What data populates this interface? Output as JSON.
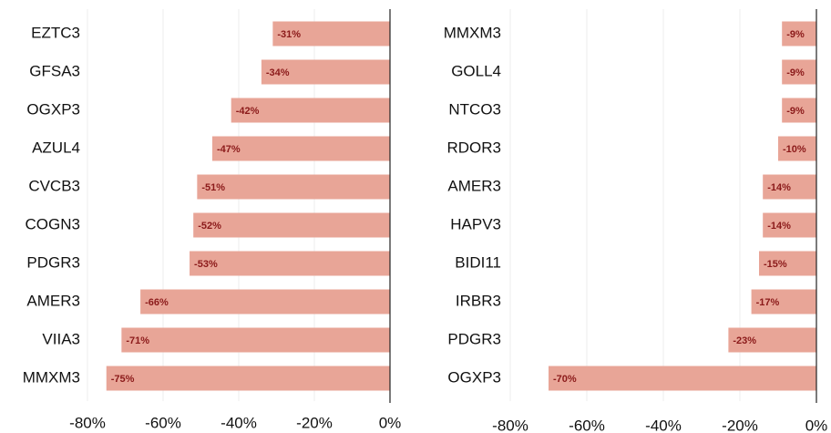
{
  "chart_data": [
    {
      "type": "bar",
      "orientation": "horizontal",
      "color": "#e8a597",
      "categories": [
        "EZTC3",
        "GFSA3",
        "OGXP3",
        "AZUL4",
        "CVCB3",
        "COGN3",
        "PDGR3",
        "AMER3",
        "VIIA3",
        "MMXM3"
      ],
      "values": [
        -31,
        -34,
        -42,
        -47,
        -51,
        -52,
        -53,
        -66,
        -71,
        -75
      ],
      "value_labels": [
        "-31%",
        "-34%",
        "-42%",
        "-47%",
        "-51%",
        "-52%",
        "-53%",
        "-66%",
        "-71%",
        "-75%"
      ],
      "xlim": [
        -80,
        0
      ],
      "xticks": [
        {
          "value": -80,
          "label": "-80%"
        },
        {
          "value": -60,
          "label": "-60%"
        },
        {
          "value": -40,
          "label": "-40%"
        },
        {
          "value": -20,
          "label": "-20%"
        },
        {
          "value": 0,
          "label": "0%"
        }
      ],
      "grid": true
    },
    {
      "type": "bar",
      "orientation": "horizontal",
      "color": "#e8a597",
      "categories": [
        "MMXM3",
        "GOLL4",
        "NTCO3",
        "RDOR3",
        "AMER3",
        "HAPV3",
        "BIDI11",
        "IRBR3",
        "PDGR3",
        "OGXP3"
      ],
      "values": [
        -9,
        -9,
        -9,
        -10,
        -14,
        -14,
        -15,
        -17,
        -23,
        -70
      ],
      "value_labels": [
        "-9%",
        "-9%",
        "-9%",
        "-10%",
        "-14%",
        "-14%",
        "-15%",
        "-17%",
        "-23%",
        "-70%"
      ],
      "xlim": [
        -80,
        0
      ],
      "xticks": [
        {
          "value": -80,
          "label": "-80%"
        },
        {
          "value": -60,
          "label": "-60%"
        },
        {
          "value": -40,
          "label": "-40%"
        },
        {
          "value": -20,
          "label": "-20%"
        },
        {
          "value": 0,
          "label": "0%"
        }
      ],
      "grid": true
    }
  ]
}
